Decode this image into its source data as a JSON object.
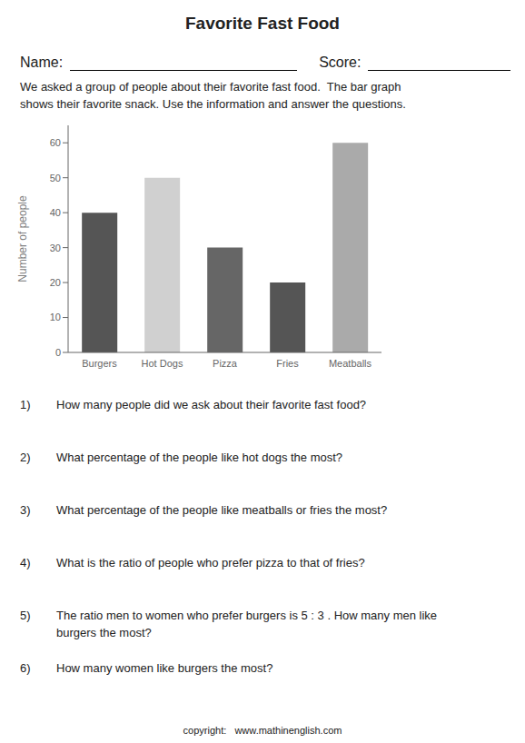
{
  "chart_data": {
    "type": "bar",
    "title": "Favorite Fast Food",
    "categories": [
      "Burgers",
      "Hot Dogs",
      "Pizza",
      "Fries",
      "Meatballs"
    ],
    "values": [
      40,
      50,
      30,
      20,
      60
    ],
    "colors": [
      "#555555",
      "#d0d0d0",
      "#666666",
      "#555555",
      "#aaaaaa"
    ],
    "ylabel": "Number of people",
    "ylim": [
      0,
      65
    ],
    "yticks": [
      0,
      10,
      20,
      30,
      40,
      50,
      60
    ],
    "grid": false,
    "annotations": {
      "name_label": "Name:",
      "score_label": "Score:",
      "description": [
        "We asked a group of people about their favorite fast food.  The bar graph",
        "shows their favorite snack. Use the information and answer the questions."
      ],
      "questions": [
        {
          "number": "1)",
          "text": "How many people did we ask about their favorite fast food?"
        },
        {
          "number": "2)",
          "text": "What percentage of the people like hot dogs the most?"
        },
        {
          "number": "3)",
          "text": "What percentage of the people like meatballs or fries the most?"
        },
        {
          "number": "4)",
          "text": "What is the ratio of people who prefer pizza to that of fries?"
        },
        {
          "number": "5)",
          "text": "The ratio men to women who prefer burgers is 5 : 3 . How many men like\nburgers the most?"
        },
        {
          "number": "6)",
          "text": "How many women like burgers the most?"
        }
      ],
      "copyright": "copyright:   www.mathinenglish.com"
    }
  }
}
